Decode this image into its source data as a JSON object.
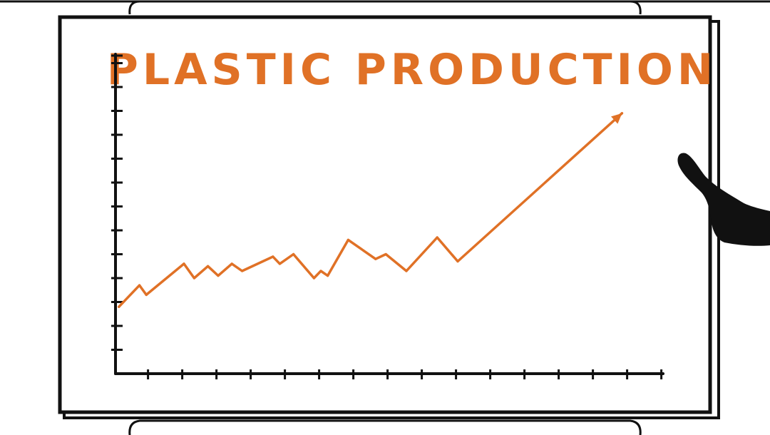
{
  "colors": {
    "ink": "#111111",
    "accent": "#e07126",
    "paper": "#ffffff"
  },
  "chart_data": {
    "type": "line",
    "title": "PLASTIC PRODUCTION",
    "xlabel": "",
    "ylabel": "",
    "x_tick_count": 15,
    "y_tick_count": 13,
    "grid": false,
    "legend": "none",
    "xlim": [
      0,
      15
    ],
    "ylim": [
      0,
      13
    ],
    "series": [
      {
        "style": "hand-drawn line ending in arrowhead",
        "x": [
          0.1,
          0.7,
          0.9,
          2.0,
          2.3,
          2.7,
          3.0,
          3.4,
          3.7,
          4.6,
          4.8,
          5.2,
          5.8,
          6.0,
          6.2,
          6.8,
          7.6,
          7.9,
          8.5,
          9.4,
          10.0,
          14.8
        ],
        "y": [
          2.8,
          3.7,
          3.3,
          4.6,
          4.0,
          4.5,
          4.1,
          4.6,
          4.3,
          4.9,
          4.6,
          5.0,
          4.0,
          4.3,
          4.1,
          5.6,
          4.8,
          5.0,
          4.3,
          5.7,
          4.7,
          10.9
        ]
      }
    ]
  }
}
